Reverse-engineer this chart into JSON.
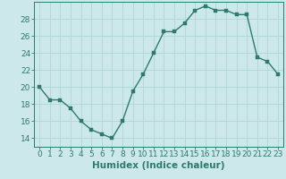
{
  "x": [
    0,
    1,
    2,
    3,
    4,
    5,
    6,
    7,
    8,
    9,
    10,
    11,
    12,
    13,
    14,
    15,
    16,
    17,
    18,
    19,
    20,
    21,
    22,
    23
  ],
  "y": [
    20,
    18.5,
    18.5,
    17.5,
    16,
    15,
    14.5,
    14,
    16,
    19.5,
    21.5,
    24,
    26.5,
    26.5,
    27.5,
    29,
    29.5,
    29,
    29,
    28.5,
    28.5,
    23.5,
    23,
    21.5
  ],
  "line_color": "#2d7a6e",
  "marker_color": "#2d7a6e",
  "bg_color": "#cce8ea",
  "grid_color": "#b0d4d8",
  "xlabel": "Humidex (Indice chaleur)",
  "xlim": [
    -0.5,
    23.5
  ],
  "ylim": [
    13,
    30
  ],
  "yticks": [
    14,
    16,
    18,
    20,
    22,
    24,
    26,
    28
  ],
  "xticks": [
    0,
    1,
    2,
    3,
    4,
    5,
    6,
    7,
    8,
    9,
    10,
    11,
    12,
    13,
    14,
    15,
    16,
    17,
    18,
    19,
    20,
    21,
    22,
    23
  ],
  "tick_label_fontsize": 6.5,
  "xlabel_fontsize": 7.5,
  "marker_size": 2.5,
  "line_width": 1.0
}
